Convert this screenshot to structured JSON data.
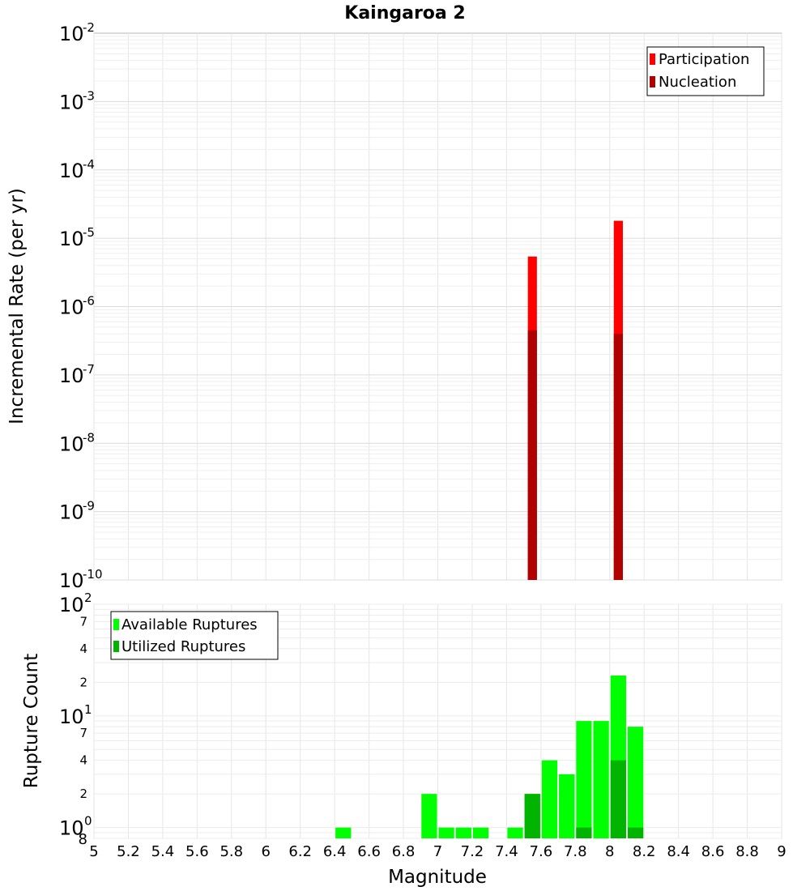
{
  "chart_data": [
    {
      "type": "bar",
      "title": "Kaingaroa 2",
      "xlabel": "",
      "ylabel": "Incremental Rate (per yr)",
      "xlim": [
        5,
        9
      ],
      "ylim": [
        1e-10,
        0.01
      ],
      "yscale": "log",
      "y_tick_exponents": [
        "-10",
        "-9",
        "-8",
        "-7",
        "-6",
        "-5",
        "-4",
        "-3",
        "-2"
      ],
      "legend_position": "top-right",
      "grid": true,
      "series": [
        {
          "name": "Participation",
          "color": "#ff0000",
          "x": [
            7.55,
            8.05
          ],
          "values": [
            5.4e-06,
            1.8e-05
          ]
        },
        {
          "name": "Nucleation",
          "color": "#b00000",
          "x": [
            7.55,
            8.05
          ],
          "values": [
            4.5e-07,
            4e-07
          ]
        }
      ]
    },
    {
      "type": "bar",
      "title": "",
      "xlabel": "Magnitude",
      "ylabel": "Rupture Count",
      "xlim": [
        5,
        9
      ],
      "ylim": [
        0.8,
        100
      ],
      "yscale": "log",
      "y_major_ticks": [
        {
          "base": "10",
          "exp": "0",
          "value": 1
        },
        {
          "base": "10",
          "exp": "1",
          "value": 10
        },
        {
          "base": "10",
          "exp": "2",
          "value": 100
        }
      ],
      "y_minor_ticks": [
        {
          "label": "8",
          "value": 0.8
        },
        {
          "label": "2",
          "value": 2
        },
        {
          "label": "4",
          "value": 4
        },
        {
          "label": "7",
          "value": 7
        },
        {
          "label": "2",
          "value": 20
        },
        {
          "label": "4",
          "value": 40
        },
        {
          "label": "7",
          "value": 70
        }
      ],
      "x_tick_labels": [
        "5",
        "5.2",
        "5.4",
        "5.6",
        "5.8",
        "6",
        "6.2",
        "6.4",
        "6.6",
        "6.8",
        "7",
        "7.2",
        "7.4",
        "7.6",
        "7.8",
        "8",
        "8.2",
        "8.4",
        "8.6",
        "8.8",
        "9"
      ],
      "legend_position": "top-left",
      "grid": true,
      "series": [
        {
          "name": "Available Ruptures",
          "color": "#00ff00",
          "x": [
            6.45,
            6.95,
            7.05,
            7.15,
            7.25,
            7.45,
            7.55,
            7.65,
            7.75,
            7.85,
            7.95,
            8.05,
            8.15
          ],
          "values": [
            1,
            2,
            1,
            1,
            1,
            1,
            2,
            4,
            3,
            9,
            9,
            23,
            8
          ]
        },
        {
          "name": "Utilized Ruptures",
          "color": "#00b400",
          "x": [
            7.55,
            7.85,
            8.05,
            8.15
          ],
          "values": [
            2,
            1,
            4,
            1
          ]
        }
      ]
    }
  ]
}
